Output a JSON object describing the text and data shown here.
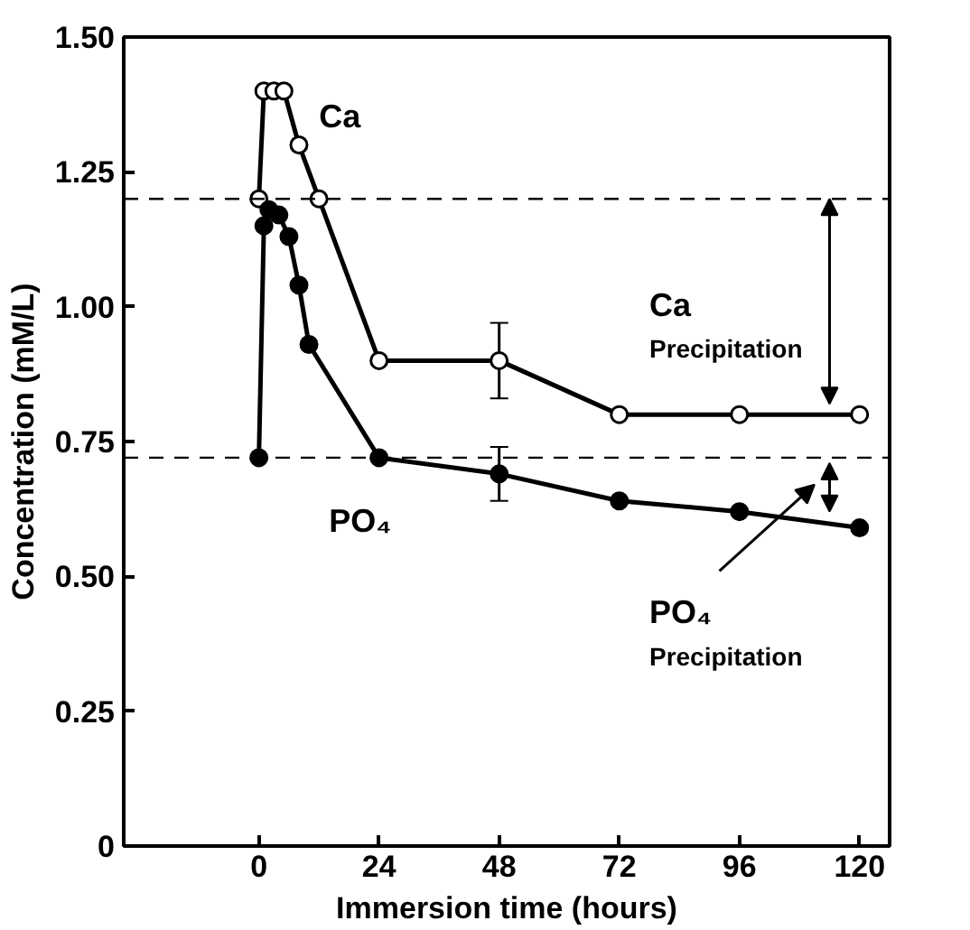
{
  "chart_data": {
    "type": "line",
    "xlabel": "Immersion time (hours)",
    "ylabel": "Concentration (mM/L)",
    "xlim": [
      -27,
      126
    ],
    "ylim": [
      0,
      1.5
    ],
    "xticks": [
      0,
      24,
      48,
      72,
      96,
      120
    ],
    "yticks": [
      0,
      {
        "value": 0.25,
        "label": "0.25"
      },
      {
        "value": 0.5,
        "label": "0.50"
      },
      {
        "value": 0.75,
        "label": "0.75"
      },
      {
        "value": 1.0,
        "label": "1.00"
      },
      {
        "value": 1.25,
        "label": "1.25"
      },
      {
        "value": 1.5,
        "label": "1.50"
      }
    ],
    "grid": false,
    "marker": "circle",
    "line_style": "solid",
    "series": [
      {
        "name": "Ca",
        "color": "#000000",
        "x": [
          0,
          1,
          3,
          5,
          8,
          12,
          24,
          48,
          72,
          96,
          120
        ],
        "values": [
          1.2,
          1.4,
          1.4,
          1.4,
          1.3,
          1.2,
          0.9,
          0.9,
          0.8,
          0.8,
          0.8
        ],
        "errors": [
          null,
          null,
          null,
          null,
          null,
          null,
          null,
          0.07,
          null,
          null,
          null
        ]
      },
      {
        "name": "PO₄",
        "color": "#000000",
        "x": [
          0,
          1,
          2,
          4,
          6,
          8,
          10,
          24,
          48,
          72,
          96,
          120
        ],
        "values": [
          0.72,
          1.15,
          1.18,
          1.17,
          1.13,
          1.04,
          0.93,
          0.72,
          0.69,
          0.64,
          0.62,
          0.59
        ],
        "errors": [
          null,
          null,
          null,
          null,
          null,
          null,
          null,
          null,
          0.05,
          null,
          null,
          null
        ]
      }
    ],
    "ref_lines": [
      {
        "axis": "y",
        "value": 1.2,
        "line_style": "dashed",
        "color": "#000000"
      },
      {
        "axis": "y",
        "value": 0.72,
        "line_style": "dashed",
        "color": "#000000"
      }
    ],
    "annotations": [
      "Ca\nPrecipitation",
      "PO₄\nPrecipitation"
    ]
  }
}
